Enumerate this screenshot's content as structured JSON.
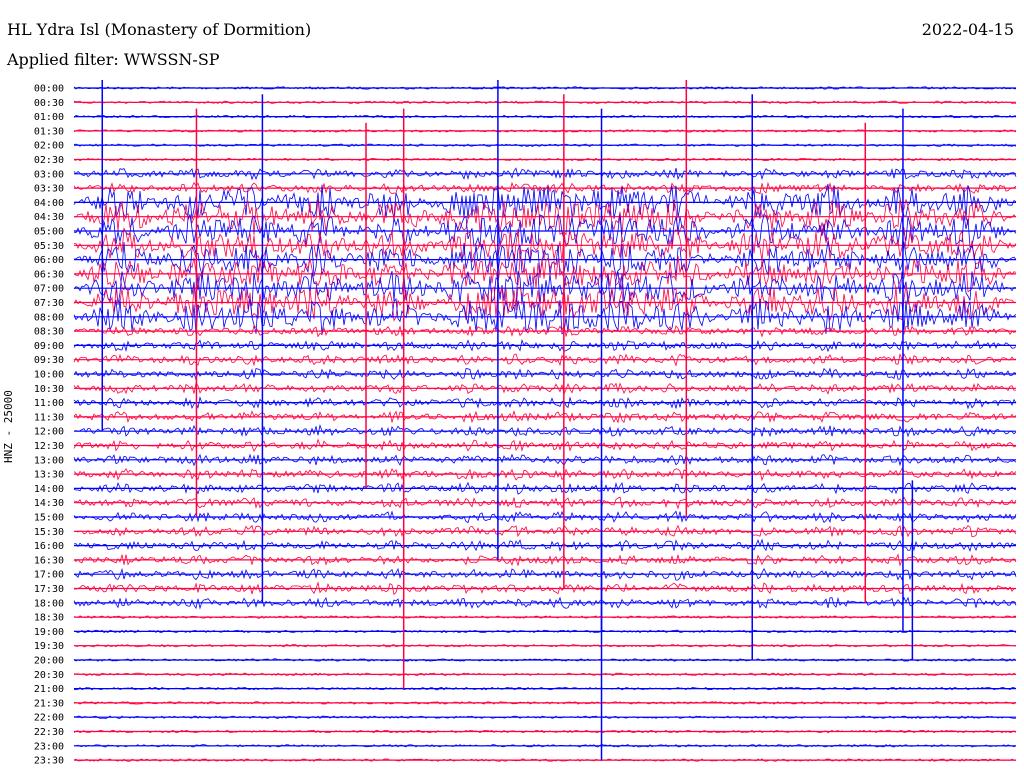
{
  "header": {
    "station_title": "HL Ydra Isl (Monastery of Dormition)",
    "filter_label": "Applied filter: WWSSN-SP",
    "date": "2022-04-15"
  },
  "axis": {
    "channel_label": "HNZ - 25000"
  },
  "colors": {
    "trace_a": "#0000ff",
    "trace_b": "#ff0040",
    "background": "#ffffff"
  },
  "chart_data": {
    "type": "line",
    "subtype": "helicorder",
    "title": "HL Ydra Isl (Monastery of Dormition)",
    "ylabel": "HNZ - 25000",
    "row_labels": [
      "00:00",
      "00:30",
      "01:00",
      "01:30",
      "02:00",
      "02:30",
      "03:00",
      "03:30",
      "04:00",
      "04:30",
      "05:00",
      "05:30",
      "06:00",
      "06:30",
      "07:00",
      "07:30",
      "08:00",
      "08:30",
      "09:00",
      "09:30",
      "10:00",
      "10:30",
      "11:00",
      "11:30",
      "12:00",
      "12:30",
      "13:00",
      "13:30",
      "14:00",
      "14:30",
      "15:00",
      "15:30",
      "16:00",
      "16:30",
      "17:00",
      "17:30",
      "18:00",
      "18:30",
      "19:00",
      "19:30",
      "20:00",
      "20:30",
      "21:00",
      "21:30",
      "22:00",
      "22:30",
      "23:00",
      "23:30"
    ],
    "row_colors": [
      "blue",
      "red"
    ],
    "high_activity_rows": [
      "04:00",
      "04:30",
      "05:00",
      "05:30",
      "06:00",
      "06:30",
      "07:00",
      "07:30",
      "08:00"
    ],
    "grid": false
  }
}
